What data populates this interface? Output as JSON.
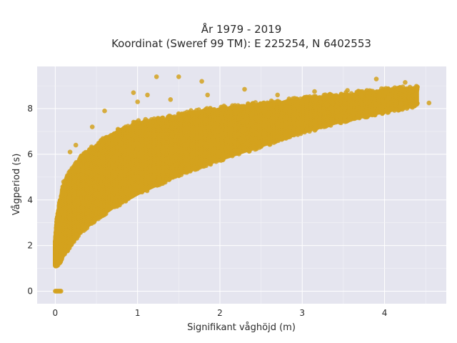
{
  "chart_data": {
    "type": "scatter",
    "title_line1": "År 1979 - 2019",
    "title_line2": "Koordinat (Sweref 99 TM): E 225254, N 6402553",
    "xlabel": "Signifikant våghöjd (m)",
    "ylabel": "Vågperiod (s)",
    "xlim": [
      -0.22,
      4.75
    ],
    "ylim": [
      -0.55,
      9.85
    ],
    "xticks": [
      0,
      1,
      2,
      3,
      4
    ],
    "yticks": [
      0,
      2,
      4,
      6,
      8
    ],
    "xtick_labels": [
      "0",
      "1",
      "2",
      "3",
      "4"
    ],
    "ytick_labels": [
      "0",
      "2",
      "4",
      "6",
      "8"
    ],
    "grid": true,
    "legend": "none",
    "background": "#e5e5ef",
    "marker_color": "#d4a21e",
    "band": [
      {
        "x": 0.0,
        "y_min": 1.1,
        "y_max": 2.2
      },
      {
        "x": 0.02,
        "y_min": 1.1,
        "y_max": 3.2
      },
      {
        "x": 0.05,
        "y_min": 1.2,
        "y_max": 3.9
      },
      {
        "x": 0.1,
        "y_min": 1.5,
        "y_max": 4.8
      },
      {
        "x": 0.2,
        "y_min": 2.0,
        "y_max": 5.4
      },
      {
        "x": 0.3,
        "y_min": 2.5,
        "y_max": 5.9
      },
      {
        "x": 0.5,
        "y_min": 3.1,
        "y_max": 6.5
      },
      {
        "x": 0.7,
        "y_min": 3.6,
        "y_max": 7.0
      },
      {
        "x": 1.0,
        "y_min": 4.2,
        "y_max": 7.5
      },
      {
        "x": 1.3,
        "y_min": 4.7,
        "y_max": 7.6
      },
      {
        "x": 1.6,
        "y_min": 5.2,
        "y_max": 7.9
      },
      {
        "x": 2.0,
        "y_min": 5.7,
        "y_max": 8.1
      },
      {
        "x": 2.5,
        "y_min": 6.3,
        "y_max": 8.3
      },
      {
        "x": 3.0,
        "y_min": 6.9,
        "y_max": 8.5
      },
      {
        "x": 3.5,
        "y_min": 7.4,
        "y_max": 8.7
      },
      {
        "x": 4.0,
        "y_min": 7.8,
        "y_max": 8.9
      },
      {
        "x": 4.4,
        "y_min": 8.1,
        "y_max": 9.0
      }
    ],
    "zero_points": [
      {
        "x": 0.0,
        "y": 0.0
      },
      {
        "x": 0.01,
        "y": 0.0
      },
      {
        "x": 0.02,
        "y": 0.0
      },
      {
        "x": 0.03,
        "y": 0.0
      },
      {
        "x": 0.04,
        "y": 0.0
      },
      {
        "x": 0.05,
        "y": 0.0
      },
      {
        "x": 0.06,
        "y": 0.0
      },
      {
        "x": 0.07,
        "y": 0.0
      }
    ],
    "outliers": [
      {
        "x": 1.23,
        "y": 9.4
      },
      {
        "x": 1.5,
        "y": 9.4
      },
      {
        "x": 1.78,
        "y": 9.2
      },
      {
        "x": 0.95,
        "y": 8.7
      },
      {
        "x": 1.12,
        "y": 8.6
      },
      {
        "x": 1.85,
        "y": 8.6
      },
      {
        "x": 2.3,
        "y": 8.85
      },
      {
        "x": 3.15,
        "y": 8.75
      },
      {
        "x": 3.55,
        "y": 8.8
      },
      {
        "x": 3.9,
        "y": 9.3
      },
      {
        "x": 4.25,
        "y": 9.15
      },
      {
        "x": 4.4,
        "y": 8.95
      },
      {
        "x": 4.54,
        "y": 8.25
      },
      {
        "x": 4.2,
        "y": 8.2
      },
      {
        "x": 4.05,
        "y": 8.45
      },
      {
        "x": 3.72,
        "y": 8.6
      },
      {
        "x": 0.6,
        "y": 7.9
      },
      {
        "x": 0.45,
        "y": 7.2
      },
      {
        "x": 0.25,
        "y": 6.4
      },
      {
        "x": 0.18,
        "y": 6.1
      },
      {
        "x": 1.0,
        "y": 8.3
      },
      {
        "x": 1.4,
        "y": 8.4
      },
      {
        "x": 2.7,
        "y": 8.6
      }
    ]
  }
}
